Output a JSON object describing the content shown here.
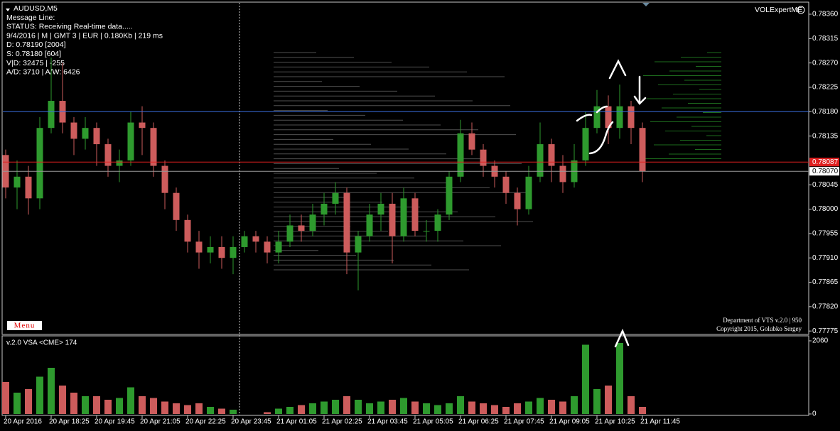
{
  "chart_data": [
    {
      "type": "candlestick",
      "title": "AUDUSD,M5",
      "info_lines": [
        "Message Line:",
        "STATUS:  Receiving Real-time data.....",
        "9/4/2016  |  M  | GMT 3 | EUR | 0.180Kb | 219 ms",
        "D: 0.78190  [2004]",
        "S: 0.78180  [604]",
        "V|D: 32475 | -255",
        "A/D: 3710 | A/W: 6426"
      ],
      "indicator": "VOLExpertME",
      "menu": "Menu",
      "footer": [
        "Department of VTS  v.2.0 | 950",
        "Copyright 2015, Golubko Sergey"
      ],
      "categories": [
        "20 Apr 2016",
        null,
        null,
        null,
        "20 Apr 18:25",
        null,
        null,
        null,
        "20 Apr 19:45",
        null,
        null,
        null,
        "20 Apr 21:05",
        null,
        null,
        null,
        "20 Apr 22:25",
        null,
        null,
        null,
        "20 Apr 23:45",
        null,
        null,
        null,
        "21 Apr 01:05",
        null,
        null,
        null,
        "21 Apr 02:25",
        null,
        null,
        null,
        "21 Apr 03:45",
        null,
        null,
        null,
        "21 Apr 05:05",
        null,
        null,
        null,
        "21 Apr 06:25",
        null,
        null,
        null,
        "21 Apr 07:45",
        null,
        null,
        null,
        "21 Apr 09:05",
        null,
        null,
        null,
        "21 Apr 10:25",
        null,
        null,
        null,
        "21 Apr 11:45"
      ],
      "open": [
        0.781,
        0.7804,
        0.7806,
        0.7802,
        0.7815,
        0.782,
        0.7816,
        0.7813,
        0.7815,
        0.7812,
        0.7808,
        0.7809,
        0.7816,
        0.7815,
        0.7808,
        0.7803,
        0.7798,
        0.7794,
        0.7792,
        0.7793,
        0.7791,
        0.7793,
        0.7795,
        0.7794,
        0.7792,
        0.7794,
        0.7797,
        0.7796,
        0.7799,
        0.7801,
        0.7803,
        0.7792,
        0.7795,
        0.7799,
        0.7801,
        0.7795,
        0.7802,
        0.7796,
        0.7796,
        0.7799,
        0.7806,
        0.7814,
        0.7811,
        0.7808,
        0.7806,
        0.7803,
        0.78,
        0.7806,
        0.7812,
        0.7808,
        0.7805,
        0.7809,
        0.7815,
        0.7819,
        0.7815,
        0.7819,
        0.7815
      ],
      "high": [
        0.7811,
        0.7809,
        0.7808,
        0.7817,
        0.7828,
        0.7827,
        0.7817,
        0.7817,
        0.7816,
        0.7813,
        0.7811,
        0.7818,
        0.7819,
        0.7816,
        0.7809,
        0.7804,
        0.7799,
        0.7796,
        0.7795,
        0.7795,
        0.7795,
        0.7796,
        0.7796,
        0.7795,
        0.7796,
        0.7799,
        0.7799,
        0.7801,
        0.7803,
        0.7805,
        0.7804,
        0.7796,
        0.7801,
        0.7803,
        0.7803,
        0.7804,
        0.7803,
        0.7798,
        0.78,
        0.7807,
        0.78165,
        0.7816,
        0.7812,
        0.7809,
        0.7807,
        0.7804,
        0.7808,
        0.7816,
        0.7813,
        0.781,
        0.7812,
        0.7818,
        0.7822,
        0.7821,
        0.7823,
        0.782,
        0.7816
      ],
      "low": [
        0.7802,
        0.78,
        0.7799,
        0.78,
        0.7814,
        0.7814,
        0.781,
        0.7811,
        0.7808,
        0.7806,
        0.7805,
        0.7808,
        0.781,
        0.7806,
        0.78,
        0.7796,
        0.7792,
        0.7789,
        0.779,
        0.7789,
        0.7788,
        0.7792,
        0.7792,
        0.779,
        0.779,
        0.7793,
        0.7794,
        0.7795,
        0.7797,
        0.7799,
        0.7788,
        0.7785,
        0.7794,
        0.7796,
        0.779,
        0.7794,
        0.7795,
        0.7794,
        0.7794,
        0.7798,
        0.7805,
        0.781,
        0.7806,
        0.7804,
        0.7801,
        0.7797,
        0.7799,
        0.7805,
        0.7805,
        0.7803,
        0.7804,
        0.7808,
        0.7814,
        0.7812,
        0.7813,
        0.7812,
        0.7805
      ],
      "close": [
        0.7804,
        0.7806,
        0.7802,
        0.7815,
        0.782,
        0.7816,
        0.7813,
        0.7815,
        0.7812,
        0.7808,
        0.7809,
        0.7816,
        0.7815,
        0.7808,
        0.7803,
        0.7798,
        0.7794,
        0.7792,
        0.7793,
        0.7791,
        0.7793,
        0.7795,
        0.7794,
        0.7792,
        0.7794,
        0.7797,
        0.7796,
        0.7799,
        0.7801,
        0.7803,
        0.7792,
        0.7795,
        0.7799,
        0.7801,
        0.7795,
        0.7802,
        0.7796,
        0.7796,
        0.7799,
        0.7806,
        0.7814,
        0.7811,
        0.7808,
        0.7806,
        0.7803,
        0.78,
        0.7806,
        0.7812,
        0.7808,
        0.7805,
        0.7809,
        0.7815,
        0.7819,
        0.7815,
        0.7819,
        0.7815,
        0.7807
      ],
      "up_color": "#2e9a2e",
      "down_color": "#cd5c5c",
      "ylim": [
        0.7777,
        0.78381
      ],
      "yticks": [
        {
          "value": 0.7836,
          "label": "0.78360"
        },
        0.78315,
        {
          "value": 0.7827,
          "label": "0.78270"
        },
        0.78225,
        {
          "value": 0.7818,
          "label": "0.78180"
        },
        0.78135,
        0.78045,
        {
          "value": 0.78,
          "label": "0.78000"
        },
        0.77955,
        {
          "value": 0.7791,
          "label": "0.77910"
        },
        0.77865,
        {
          "value": 0.7782,
          "label": "0.77820"
        },
        0.77775
      ],
      "price_lines": [
        {
          "value": 0.7818,
          "color": "#3a6fe0"
        },
        {
          "value": 0.78087,
          "label": "0.78087",
          "color": "#e02020"
        },
        {
          "value": 0.7807,
          "label": "0.78070",
          "color": "#9a9a9a"
        }
      ]
    },
    {
      "type": "bar",
      "title": "v.2.0 VSA <CME> 174",
      "values": [
        900,
        600,
        700,
        1050,
        1300,
        800,
        600,
        500,
        500,
        400,
        450,
        750,
        500,
        450,
        350,
        300,
        250,
        300,
        200,
        150,
        120,
        null,
        null,
        50,
        150,
        200,
        250,
        300,
        350,
        400,
        500,
        400,
        300,
        350,
        400,
        450,
        350,
        300,
        250,
        300,
        500,
        350,
        300,
        250,
        200,
        300,
        350,
        450,
        400,
        350,
        500,
        1950,
        700,
        800,
        2000,
        500,
        200
      ],
      "ylim": [
        0,
        2180
      ],
      "yticks": [
        0,
        2060
      ]
    }
  ]
}
